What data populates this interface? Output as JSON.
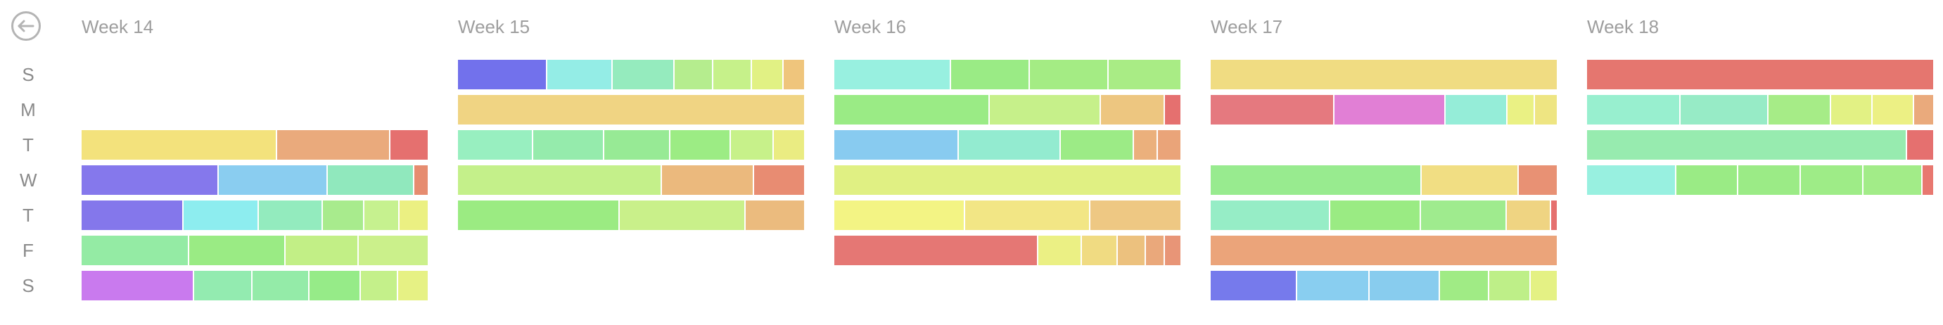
{
  "back_icon": "arrow-left-circle-icon",
  "day_labels": [
    "S",
    "M",
    "T",
    "W",
    "T",
    "F",
    "S"
  ],
  "weeks": [
    {
      "title": "Week 14",
      "rows": [
        [],
        [],
        [
          {
            "w": 0.565,
            "color": "#F3E27C"
          },
          {
            "w": 0.327,
            "color": "#EAAA7C"
          },
          {
            "w": 0.108,
            "color": "#E5706F"
          }
        ],
        [
          {
            "w": 0.396,
            "color": "#8578EC"
          },
          {
            "w": 0.315,
            "color": "#8ACDF0"
          },
          {
            "w": 0.25,
            "color": "#90E8BD"
          },
          {
            "w": 0.039,
            "color": "#E68C70"
          }
        ],
        [
          {
            "w": 0.295,
            "color": "#8477EB"
          },
          {
            "w": 0.218,
            "color": "#8DEDEF"
          },
          {
            "w": 0.185,
            "color": "#93EBBE"
          },
          {
            "w": 0.12,
            "color": "#A8EB8D"
          },
          {
            "w": 0.1,
            "color": "#C6F18F"
          },
          {
            "w": 0.082,
            "color": "#EBF082"
          }
        ],
        [
          {
            "w": 0.31,
            "color": "#94EBA4"
          },
          {
            "w": 0.28,
            "color": "#9AEB84"
          },
          {
            "w": 0.21,
            "color": "#C2EF86"
          },
          {
            "w": 0.2,
            "color": "#CBF08B"
          }
        ],
        [
          {
            "w": 0.325,
            "color": "#C97AEE"
          },
          {
            "w": 0.168,
            "color": "#93EBB0"
          },
          {
            "w": 0.165,
            "color": "#94EBA8"
          },
          {
            "w": 0.148,
            "color": "#96EB88"
          },
          {
            "w": 0.108,
            "color": "#C4F08A"
          },
          {
            "w": 0.086,
            "color": "#E6F184"
          }
        ]
      ]
    },
    {
      "title": "Week 15",
      "rows": [
        [
          {
            "w": 0.258,
            "color": "#7271EC"
          },
          {
            "w": 0.19,
            "color": "#94EDE6"
          },
          {
            "w": 0.178,
            "color": "#95EBBE"
          },
          {
            "w": 0.112,
            "color": "#B5ED8E"
          },
          {
            "w": 0.112,
            "color": "#C6F18A"
          },
          {
            "w": 0.092,
            "color": "#E1F184"
          },
          {
            "w": 0.058,
            "color": "#EFC57C"
          }
        ],
        [
          {
            "w": 1.0,
            "color": "#F0D483"
          }
        ],
        [
          {
            "w": 0.218,
            "color": "#98EFC0"
          },
          {
            "w": 0.205,
            "color": "#95EBAC"
          },
          {
            "w": 0.19,
            "color": "#97EA95"
          },
          {
            "w": 0.175,
            "color": "#9CEC84"
          },
          {
            "w": 0.124,
            "color": "#C7F18A"
          },
          {
            "w": 0.088,
            "color": "#EAEC82"
          }
        ],
        [
          {
            "w": 0.59,
            "color": "#C4F08A"
          },
          {
            "w": 0.265,
            "color": "#EBB97D"
          },
          {
            "w": 0.145,
            "color": "#E88C72"
          }
        ],
        [
          {
            "w": 0.467,
            "color": "#9BEB82"
          },
          {
            "w": 0.365,
            "color": "#C9F08A"
          },
          {
            "w": 0.168,
            "color": "#EBBB7E"
          }
        ]
      ]
    },
    {
      "title": "Week 16",
      "rows": [
        [
          {
            "w": 0.338,
            "color": "#98F0E0"
          },
          {
            "w": 0.227,
            "color": "#9AEB85"
          },
          {
            "w": 0.227,
            "color": "#A4EC84"
          },
          {
            "w": 0.208,
            "color": "#A9EC85"
          }
        ],
        [
          {
            "w": 0.45,
            "color": "#9AEB85"
          },
          {
            "w": 0.32,
            "color": "#C6F08A"
          },
          {
            "w": 0.185,
            "color": "#EDC680"
          },
          {
            "w": 0.045,
            "color": "#E5706F"
          }
        ],
        [
          {
            "w": 0.36,
            "color": "#88CBF0"
          },
          {
            "w": 0.295,
            "color": "#93EBD0"
          },
          {
            "w": 0.21,
            "color": "#9CEB86"
          },
          {
            "w": 0.07,
            "color": "#EBB07C"
          },
          {
            "w": 0.065,
            "color": "#EAA479"
          }
        ],
        [
          {
            "w": 1.0,
            "color": "#E0F083"
          }
        ],
        [
          {
            "w": 0.378,
            "color": "#F3F484"
          },
          {
            "w": 0.362,
            "color": "#F2E685"
          },
          {
            "w": 0.26,
            "color": "#EEC883"
          }
        ],
        [
          {
            "w": 0.59,
            "color": "#E57774"
          },
          {
            "w": 0.125,
            "color": "#EBF084"
          },
          {
            "w": 0.105,
            "color": "#F0DB82"
          },
          {
            "w": 0.08,
            "color": "#ECC17E"
          },
          {
            "w": 0.056,
            "color": "#EAA87B"
          },
          {
            "w": 0.044,
            "color": "#E89577"
          }
        ]
      ]
    },
    {
      "title": "Week 17",
      "rows": [
        [
          {
            "w": 1.0,
            "color": "#F0DC82"
          }
        ],
        [
          {
            "w": 0.358,
            "color": "#E5797F"
          },
          {
            "w": 0.32,
            "color": "#E17FD5"
          },
          {
            "w": 0.18,
            "color": "#95EDD8"
          },
          {
            "w": 0.08,
            "color": "#EAF184"
          },
          {
            "w": 0.062,
            "color": "#EEE582"
          }
        ],
        [],
        [
          {
            "w": 0.61,
            "color": "#98EB8F"
          },
          {
            "w": 0.28,
            "color": "#F1DE83"
          },
          {
            "w": 0.11,
            "color": "#E89174"
          }
        ],
        [
          {
            "w": 0.345,
            "color": "#96EDC6"
          },
          {
            "w": 0.262,
            "color": "#9AEB83"
          },
          {
            "w": 0.248,
            "color": "#9FEB8E"
          },
          {
            "w": 0.128,
            "color": "#EFD482"
          },
          {
            "w": 0.017,
            "color": "#E5706F"
          }
        ],
        [
          {
            "w": 1.0,
            "color": "#EBA47A"
          }
        ],
        [
          {
            "w": 0.25,
            "color": "#767AEC"
          },
          {
            "w": 0.21,
            "color": "#89CEF0"
          },
          {
            "w": 0.202,
            "color": "#88CCEE"
          },
          {
            "w": 0.143,
            "color": "#A0EB85"
          },
          {
            "w": 0.12,
            "color": "#BEEF88"
          },
          {
            "w": 0.075,
            "color": "#E4F184"
          }
        ]
      ]
    },
    {
      "title": "Week 18",
      "rows": [
        [
          {
            "w": 1.0,
            "color": "#E5766F"
          }
        ],
        [
          {
            "w": 0.27,
            "color": "#98EFCF"
          },
          {
            "w": 0.255,
            "color": "#97EBC6"
          },
          {
            "w": 0.18,
            "color": "#A6EC87"
          },
          {
            "w": 0.12,
            "color": "#E2F184"
          },
          {
            "w": 0.12,
            "color": "#ECF084"
          },
          {
            "w": 0.055,
            "color": "#EAAA7C"
          }
        ],
        [
          {
            "w": 0.925,
            "color": "#97EBAF"
          },
          {
            "w": 0.075,
            "color": "#E5706F"
          }
        ],
        [
          {
            "w": 0.258,
            "color": "#98F0E0"
          },
          {
            "w": 0.18,
            "color": "#9AEB85"
          },
          {
            "w": 0.18,
            "color": "#9BEB86"
          },
          {
            "w": 0.18,
            "color": "#9EEC87"
          },
          {
            "w": 0.172,
            "color": "#A2EC88"
          },
          {
            "w": 0.03,
            "color": "#E87870"
          }
        ]
      ]
    }
  ]
}
